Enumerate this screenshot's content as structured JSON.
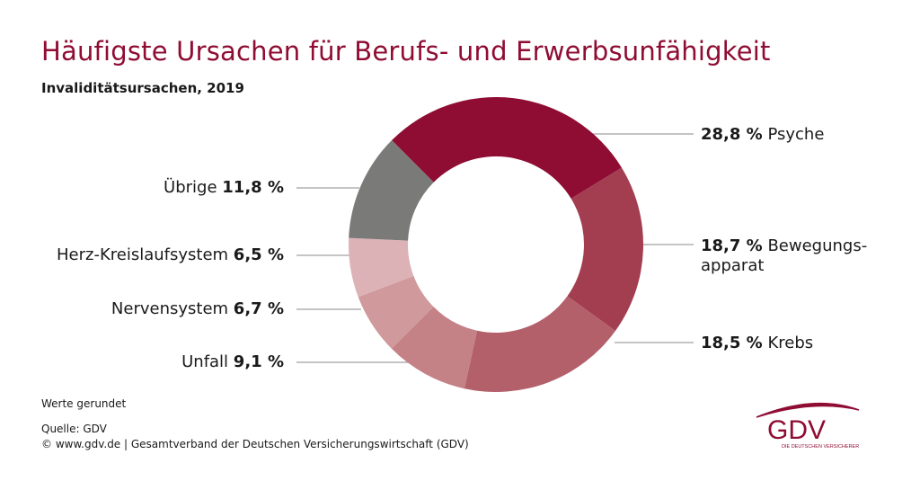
{
  "title": "Häufigste Ursachen für Berufs- und Erwerbsunfähigkeit",
  "subtitle": "Invaliditätsursachen, 2019",
  "notes": {
    "rounded": "Werte gerundet",
    "source": "Quelle: GDV",
    "copyright": "© www.gdv.de | Gesamtverband der Deutschen Versicherungswirtschaft (GDV)"
  },
  "logo": {
    "text": "GDV",
    "tagline": "DIE DEUTSCHEN VERSICHERER",
    "color": "#8f0c33"
  },
  "chart_data": {
    "type": "pie",
    "donut": true,
    "unit": "%",
    "title": "Häufigste Ursachen für Berufs- und Erwerbsunfähigkeit",
    "subtitle": "Invaliditätsursachen, 2019",
    "slices": [
      {
        "label": "Psyche",
        "value": 28.8,
        "value_text": "28,8 %",
        "color": "#8f0c33"
      },
      {
        "label": "Bewegungs-apparat",
        "label_lines": [
          "Bewegungs-",
          "apparat"
        ],
        "value": 18.7,
        "value_text": "18,7 %",
        "color": "#a33d50"
      },
      {
        "label": "Krebs",
        "value": 18.5,
        "value_text": "18,5 %",
        "color": "#b3606a"
      },
      {
        "label": "Unfall",
        "value": 9.1,
        "value_text": "9,1 %",
        "color": "#c48186"
      },
      {
        "label": "Nervensystem",
        "value": 6.7,
        "value_text": "6,7 %",
        "color": "#d09a9c"
      },
      {
        "label": "Herz-Kreislaufsystem",
        "value": 6.5,
        "value_text": "6,5 %",
        "color": "#dcb2b7"
      },
      {
        "label": "Übrige",
        "value": 11.8,
        "value_text": "11,8 %",
        "color": "#7a7a78"
      }
    ]
  }
}
